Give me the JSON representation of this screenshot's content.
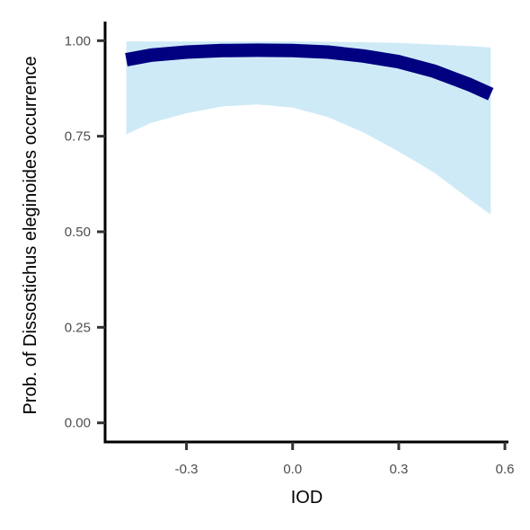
{
  "chart_data": {
    "type": "line",
    "xlabel": "IOD",
    "ylabel": "Prob. of  Dissostichus eleginoides  occurrence",
    "xlim": [
      -0.53,
      0.61
    ],
    "ylim": [
      -0.05,
      1.05
    ],
    "grid": false,
    "x_ticks": [
      -0.3,
      0.0,
      0.3,
      0.6
    ],
    "x_tick_labels": [
      "-0.3",
      "0.0",
      "0.3",
      "0.6"
    ],
    "y_ticks": [
      0.0,
      0.25,
      0.5,
      0.75,
      1.0
    ],
    "y_tick_labels": [
      "0.00",
      "0.25",
      "0.50",
      "0.75",
      "1.00"
    ],
    "series": [
      {
        "x": [
          -0.47,
          -0.4,
          -0.3,
          -0.2,
          -0.1,
          0.0,
          0.1,
          0.2,
          0.3,
          0.4,
          0.5,
          0.56
        ],
        "y": [
          0.95,
          0.962,
          0.97,
          0.974,
          0.975,
          0.974,
          0.97,
          0.96,
          0.945,
          0.92,
          0.885,
          0.86
        ],
        "lower": [
          0.755,
          0.785,
          0.81,
          0.828,
          0.833,
          0.825,
          0.8,
          0.76,
          0.71,
          0.655,
          0.585,
          0.545
        ],
        "upper": [
          0.998,
          0.998,
          0.998,
          0.998,
          0.998,
          0.998,
          0.997,
          0.996,
          0.994,
          0.99,
          0.986,
          0.982
        ],
        "line_color": "#000080",
        "band_color": "#cfeaf7"
      }
    ]
  }
}
